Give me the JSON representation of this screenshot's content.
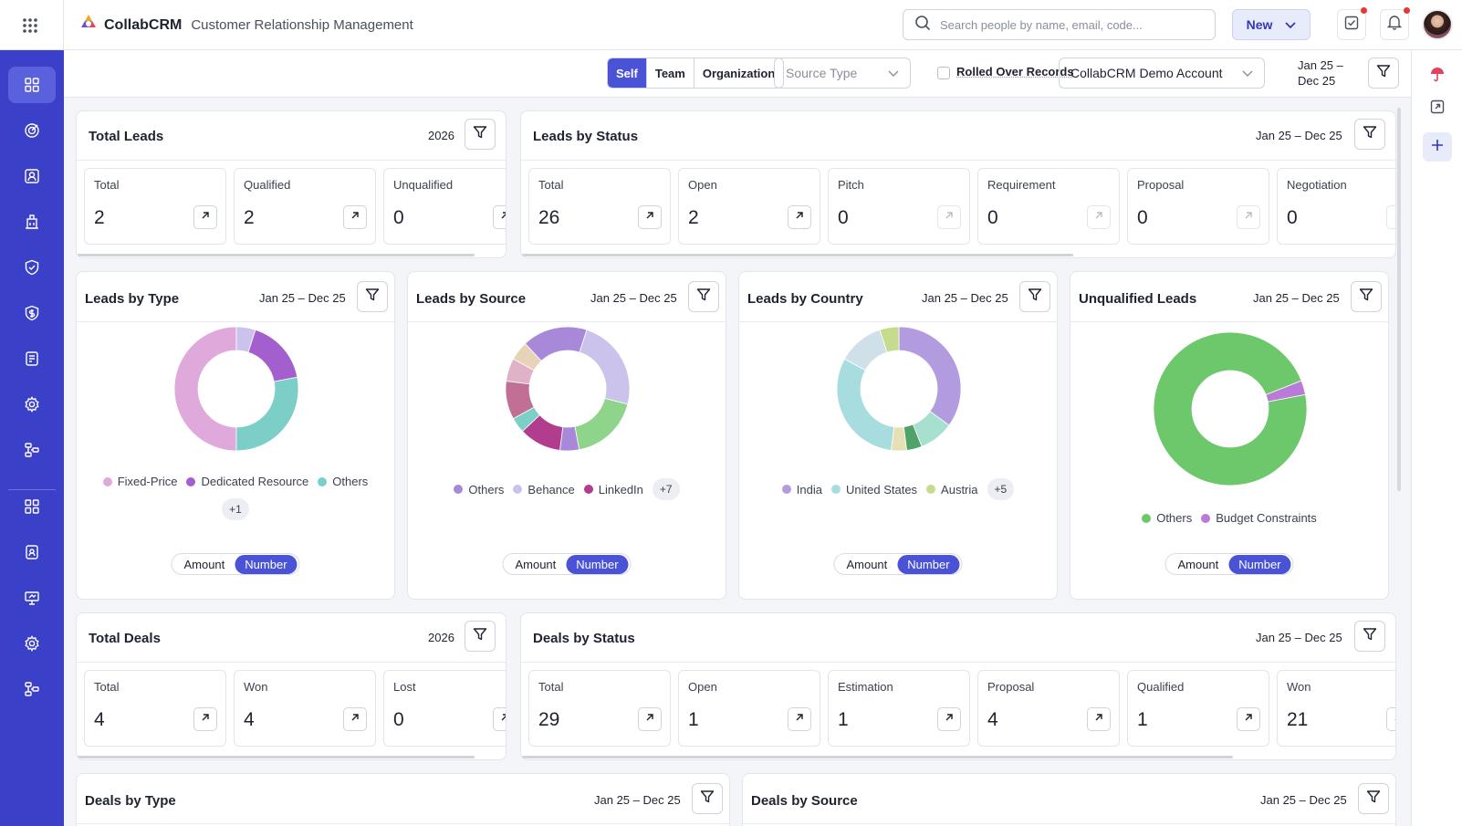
{
  "app": {
    "brand": "CollabCRM",
    "subtitle": "Customer Relationship Management"
  },
  "search": {
    "placeholder": "Search people by name, email, code..."
  },
  "header": {
    "new_label": "New"
  },
  "filters": {
    "scope": [
      "Self",
      "Team",
      "Organization"
    ],
    "scope_active": "Self",
    "source_type_placeholder": "Source Type",
    "rolled_over_label": "Rolled Over Records",
    "account": "CollabCRM Demo Account",
    "date_line1": "Jan 25 –",
    "date_line2": "Dec 25"
  },
  "colors": {
    "accent": "#4a52d6",
    "sidebar": "#3a40c8"
  },
  "sidebar_icons": [
    "dashboard-icon",
    "target-icon",
    "contact-card-icon",
    "building-icon",
    "shield-check-icon",
    "dollar-shield-icon",
    "notes-icon",
    "settings-icon",
    "workflow-icon",
    "apps-icon",
    "id-badge-icon",
    "presentation-icon",
    "gear-icon",
    "flow-icon"
  ],
  "total_leads": {
    "title": "Total Leads",
    "year": "2026",
    "tiles": [
      {
        "label": "Total",
        "value": "2"
      },
      {
        "label": "Qualified",
        "value": "2"
      },
      {
        "label": "Unqualified",
        "value": "0"
      }
    ]
  },
  "leads_by_status": {
    "title": "Leads by Status",
    "date": "Jan 25 – Dec 25",
    "tiles": [
      {
        "label": "Total",
        "value": "26"
      },
      {
        "label": "Open",
        "value": "2"
      },
      {
        "label": "Pitch",
        "value": "0"
      },
      {
        "label": "Requirement",
        "value": "0"
      },
      {
        "label": "Proposal",
        "value": "0"
      },
      {
        "label": "Negotiation",
        "value": "0"
      }
    ]
  },
  "donuts": [
    {
      "title": "Leads by Type",
      "date": "Jan 25 – Dec 25",
      "legend": [
        {
          "label": "Fixed-Price",
          "color": "#e0a9dc"
        },
        {
          "label": "Dedicated Resource",
          "color": "#a45fcf"
        },
        {
          "label": "Others",
          "color": "#7ccfc6"
        }
      ],
      "more": "+1",
      "toggle": [
        "Amount",
        "Number"
      ]
    },
    {
      "title": "Leads by Source",
      "date": "Jan 25 – Dec 25",
      "legend": [
        {
          "label": "Others",
          "color": "#a889d9"
        },
        {
          "label": "Behance",
          "color": "#cbc3ec"
        },
        {
          "label": "LinkedIn",
          "color": "#b23c8e"
        }
      ],
      "more": "+7",
      "toggle": [
        "Amount",
        "Number"
      ]
    },
    {
      "title": "Leads by Country",
      "date": "Jan 25 – Dec 25",
      "legend": [
        {
          "label": "India",
          "color": "#b39be0"
        },
        {
          "label": "United States",
          "color": "#a8dde0"
        },
        {
          "label": "Austria",
          "color": "#c4dc8c"
        }
      ],
      "more": "+5",
      "toggle": [
        "Amount",
        "Number"
      ]
    },
    {
      "title": "Unqualified Leads",
      "date": "Jan 25 – Dec 25",
      "legend": [
        {
          "label": "Others",
          "color": "#6cc86a"
        },
        {
          "label": "Budget Constraints",
          "color": "#b97bd6"
        }
      ],
      "more": "",
      "toggle": [
        "Amount",
        "Number"
      ]
    }
  ],
  "total_deals": {
    "title": "Total Deals",
    "year": "2026",
    "tiles": [
      {
        "label": "Total",
        "value": "4"
      },
      {
        "label": "Won",
        "value": "4"
      },
      {
        "label": "Lost",
        "value": "0"
      }
    ]
  },
  "deals_by_status": {
    "title": "Deals by Status",
    "date": "Jan 25 – Dec 25",
    "tiles": [
      {
        "label": "Total",
        "value": "29"
      },
      {
        "label": "Open",
        "value": "1"
      },
      {
        "label": "Estimation",
        "value": "1"
      },
      {
        "label": "Proposal",
        "value": "4"
      },
      {
        "label": "Qualified",
        "value": "1"
      },
      {
        "label": "Won",
        "value": "21"
      }
    ]
  },
  "deals_by_type": {
    "title": "Deals by Type",
    "date": "Jan 25 – Dec 25"
  },
  "deals_by_source": {
    "title": "Deals by Source",
    "date": "Jan 25 – Dec 25"
  }
}
